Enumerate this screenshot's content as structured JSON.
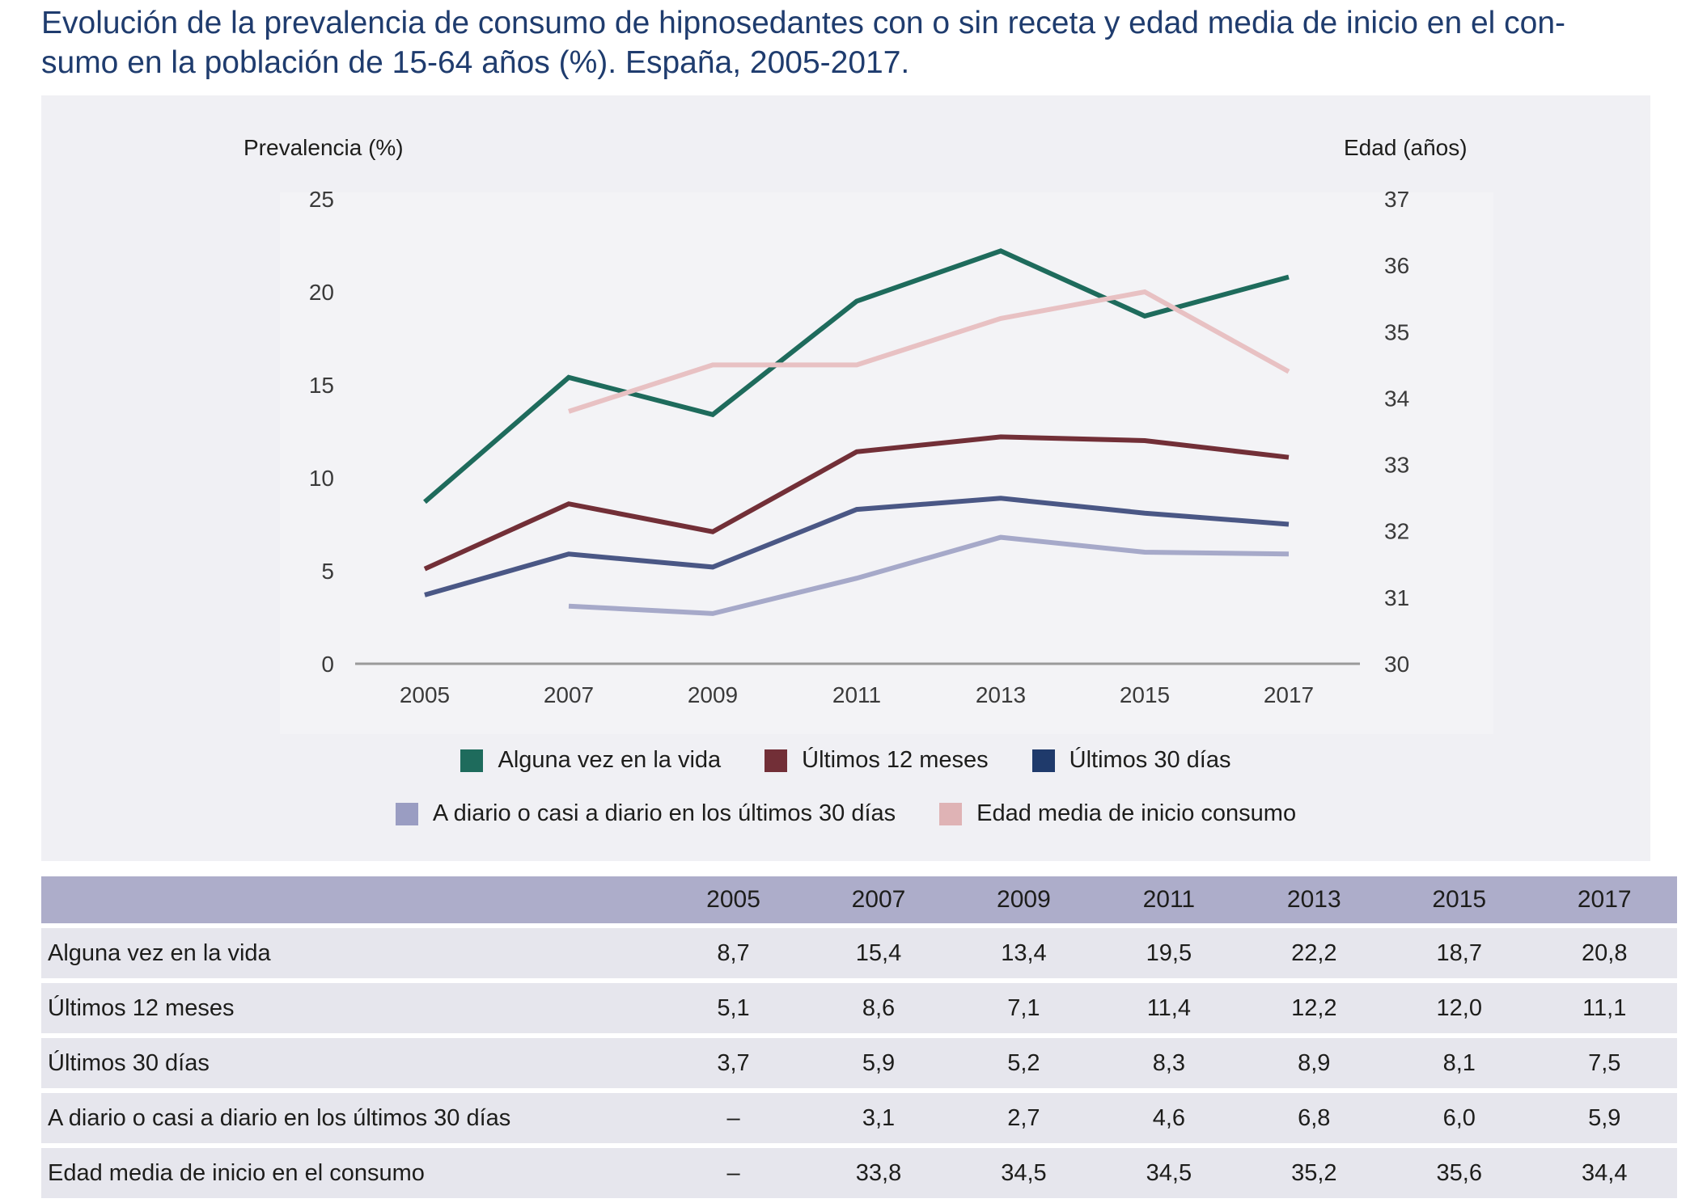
{
  "title": "Evolución de la prevalencia de consumo de hipnosedantes con o sin receta y edad media de inicio en el con-sumo en la población de 15-64 años (%). España, 2005-2017.",
  "title_lines": [
    "Evolución de la prevalencia de consumo de hipnosedantes con o sin receta y edad media de inicio en el con-",
    "sumo en la población de 15-64 años (%). España, 2005-2017."
  ],
  "chart_data": {
    "type": "line",
    "title": "Evolución de la prevalencia de consumo de hipnosedantes con o sin receta y edad media de inicio en el consumo en la población de 15-64 años (%). España, 2005-2017.",
    "x": [
      "2005",
      "2007",
      "2009",
      "2011",
      "2013",
      "2015",
      "2017"
    ],
    "ylabel_left": "Prevalencia (%)",
    "ylabel_right": "Edad (años)",
    "ylim_left": [
      0,
      25
    ],
    "yticks_left": [
      "0",
      "5",
      "10",
      "15",
      "20",
      "25"
    ],
    "ylim_right": [
      30,
      37
    ],
    "yticks_right": [
      "30",
      "31",
      "32",
      "33",
      "34",
      "35",
      "36",
      "37"
    ],
    "grid": false,
    "legend_position": "bottom",
    "series": [
      {
        "name": "Alguna vez en la vida",
        "axis": "left",
        "color": "#1e6b5c",
        "values": [
          8.7,
          15.4,
          13.4,
          19.5,
          22.2,
          18.7,
          20.8
        ]
      },
      {
        "name": "Últimos 12 meses",
        "axis": "left",
        "color": "#722f37",
        "values": [
          5.1,
          8.6,
          7.1,
          11.4,
          12.2,
          12.0,
          11.1
        ]
      },
      {
        "name": "Últimos 30 días",
        "axis": "left",
        "color": "#4a5785",
        "legend_color": "#1f3a6b",
        "values": [
          3.7,
          5.9,
          5.2,
          8.3,
          8.9,
          8.1,
          7.5
        ]
      },
      {
        "name": "A diario o casi a diario en los últimos 30 días",
        "axis": "left",
        "color": "#a6a9c9",
        "legend_color": "#9a9dc2",
        "values": [
          null,
          3.1,
          2.7,
          4.6,
          6.8,
          6.0,
          5.9
        ]
      },
      {
        "name": "Edad media de inicio consumo",
        "axis": "right",
        "color": "#e8c1c3",
        "legend_color": "#dfb3b5",
        "values": [
          null,
          33.8,
          34.5,
          34.5,
          35.2,
          35.6,
          34.4
        ]
      }
    ]
  },
  "legend": {
    "row1": [
      {
        "label": "Alguna vez en la vida",
        "color": "#1e6b5c"
      },
      {
        "label": "Últimos 12 meses",
        "color": "#722f37"
      },
      {
        "label": "Últimos 30 días",
        "color": "#1f3a6b"
      }
    ],
    "row2": [
      {
        "label": "A diario o casi a diario en los últimos 30 días",
        "color": "#9a9dc2"
      },
      {
        "label": "Edad media de inicio consumo",
        "color": "#dfb3b5"
      }
    ]
  },
  "table": {
    "header": [
      "",
      "2005",
      "2007",
      "2009",
      "2011",
      "2013",
      "2015",
      "2017"
    ],
    "rows": [
      [
        "Alguna vez en la vida",
        "8,7",
        "15,4",
        "13,4",
        "19,5",
        "22,2",
        "18,7",
        "20,8"
      ],
      [
        "Últimos 12 meses",
        "5,1",
        "8,6",
        "7,1",
        "11,4",
        "12,2",
        "12,0",
        "11,1"
      ],
      [
        "Últimos 30 días",
        "3,7",
        "5,9",
        "5,2",
        "8,3",
        "8,9",
        "8,1",
        "7,5"
      ],
      [
        "A diario o casi a diario en los últimos 30 días",
        "–",
        "3,1",
        "2,7",
        "4,6",
        "6,8",
        "6,0",
        "5,9"
      ],
      [
        "Edad media de inicio en el consumo",
        "–",
        "33,8",
        "34,5",
        "34,5",
        "35,2",
        "35,6",
        "34,4"
      ]
    ]
  }
}
